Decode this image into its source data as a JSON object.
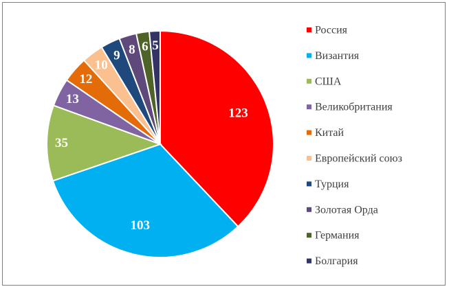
{
  "chart_data": {
    "type": "pie",
    "title": "",
    "legend_position": "right",
    "categories": [
      "Россия",
      "Византия",
      "США",
      "Великобритания",
      "Китай",
      "Европейский союз",
      "Турция",
      "Золотая Орда",
      "Германия",
      "Болгария"
    ],
    "values": [
      123,
      103,
      35,
      13,
      12,
      10,
      9,
      8,
      6,
      5
    ],
    "labels": [
      "123",
      "103",
      "35",
      "13",
      "12",
      "10",
      "9",
      "8",
      "6",
      "5"
    ],
    "colors": [
      "#ff0000",
      "#00b0f0",
      "#9bbb59",
      "#8064a2",
      "#e36c09",
      "#fac090",
      "#1f497d",
      "#5f497a",
      "#4f6228",
      "#333366"
    ]
  }
}
